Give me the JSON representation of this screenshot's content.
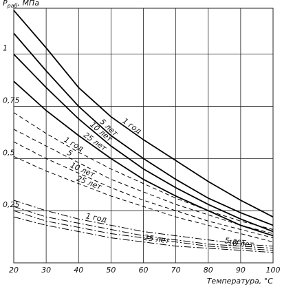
{
  "chart_data": {
    "type": "line",
    "ylabel_main": "P",
    "ylabel_sub": "раб",
    "ylabel_rest": ", МПа",
    "xlabel": "Температура, °С",
    "x": [
      20,
      30,
      40,
      50,
      60,
      70,
      80,
      90,
      100
    ],
    "xlim": [
      20,
      100
    ],
    "xticks": [
      20,
      30,
      40,
      50,
      60,
      70,
      80,
      90,
      100
    ],
    "ylim": [
      0,
      1.22
    ],
    "yticks": [
      {
        "value": 0.25,
        "label": "0,25"
      },
      {
        "value": 0.5,
        "label": "0,5"
      },
      {
        "value": 0.75,
        "label": "0,75"
      },
      1
    ],
    "grid": true,
    "series": [
      {
        "name": "1 год",
        "style": "solid",
        "color": "#000",
        "values": [
          1.21,
          1.03,
          0.84,
          0.7,
          0.59,
          0.49,
          0.39,
          0.3,
          0.22
        ]
      },
      {
        "name": "5 лет",
        "style": "solid",
        "color": "#000",
        "values": [
          1.1,
          0.92,
          0.75,
          0.61,
          0.5,
          0.4,
          0.31,
          0.24,
          0.18
        ]
      },
      {
        "name": "10 лет",
        "style": "solid",
        "color": "#000",
        "values": [
          1.0,
          0.84,
          0.69,
          0.56,
          0.45,
          0.36,
          0.28,
          0.21,
          0.15
        ]
      },
      {
        "name": "25 лет",
        "style": "solid",
        "color": "#000",
        "values": [
          0.87,
          0.73,
          0.61,
          0.5,
          0.4,
          0.32,
          0.25,
          0.18,
          0.13
        ]
      },
      {
        "name": "1 год",
        "style": "dashed",
        "color": "#000",
        "values": [
          0.72,
          0.62,
          0.53,
          0.45,
          0.38,
          0.31,
          0.25,
          0.2,
          0.16
        ]
      },
      {
        "name": "5",
        "style": "dashed",
        "color": "#000",
        "values": [
          0.64,
          0.56,
          0.48,
          0.4,
          0.34,
          0.28,
          0.23,
          0.18,
          0.14
        ]
      },
      {
        "name": "10 лет",
        "style": "dashed",
        "color": "#000",
        "values": [
          0.58,
          0.5,
          0.43,
          0.36,
          0.3,
          0.25,
          0.2,
          0.16,
          0.12
        ]
      },
      {
        "name": "25 лет",
        "style": "dashed",
        "color": "#000",
        "values": [
          0.51,
          0.44,
          0.38,
          0.32,
          0.27,
          0.22,
          0.18,
          0.14,
          0.1
        ]
      },
      {
        "name": "1 год",
        "style": "dashdot",
        "color": "#000",
        "values": [
          0.3,
          0.25,
          0.21,
          0.18,
          0.15,
          0.13,
          0.11,
          0.09,
          0.08
        ]
      },
      {
        "name": "5 лет",
        "style": "dashdot",
        "color": "#000",
        "values": [
          0.27,
          0.22,
          0.19,
          0.16,
          0.13,
          0.11,
          0.09,
          0.08,
          0.07
        ]
      },
      {
        "name": "10 лет",
        "style": "dashdot",
        "color": "#000",
        "values": [
          0.25,
          0.2,
          0.17,
          0.14,
          0.12,
          0.1,
          0.08,
          0.07,
          0.06
        ]
      },
      {
        "name": "25 лет",
        "style": "dashdot",
        "color": "#000",
        "values": [
          0.22,
          0.18,
          0.15,
          0.12,
          0.1,
          0.08,
          0.07,
          0.06,
          0.05
        ]
      }
    ]
  }
}
